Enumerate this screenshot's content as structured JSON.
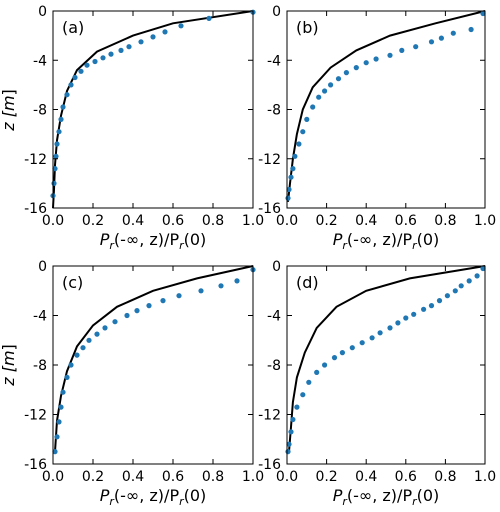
{
  "figure": {
    "panels": [
      "(a)",
      "(b)",
      "(c)",
      "(d)"
    ]
  },
  "axes": {
    "xlabel": {
      "main": "P",
      "sub": "r",
      "rest": "(-∞, z)/P",
      "sub2": "r",
      "rest2": "(0)"
    },
    "ylabel": {
      "main": "z [",
      "unit": "m",
      "close": "]"
    },
    "xticks": [
      "0.0",
      "0.2",
      "0.4",
      "0.6",
      "0.8",
      "1.0"
    ],
    "yticks": [
      "0",
      "-4",
      "-8",
      "-12",
      "-16"
    ]
  },
  "colors": {
    "points": "#1f77b4",
    "line": "#000000"
  },
  "chart_data": [
    {
      "type": "scatter",
      "title": "(a)",
      "xlabel": "Pr(-∞, z)/Pr(0)",
      "ylabel": "z [m]",
      "xlim": [
        0,
        1
      ],
      "ylim": [
        -16,
        0
      ],
      "series": [
        {
          "kind": "line",
          "x": [
            1.0,
            0.6,
            0.4,
            0.22,
            0.12,
            0.07,
            0.04,
            0.02,
            0.01,
            0.005,
            0.0
          ],
          "y": [
            0,
            -1,
            -2,
            -3.3,
            -4.8,
            -6.5,
            -8.5,
            -10.5,
            -12.5,
            -14.5,
            -16
          ]
        },
        {
          "kind": "points",
          "x": [
            1.0,
            0.78,
            0.64,
            0.56,
            0.5,
            0.44,
            0.38,
            0.34,
            0.29,
            0.25,
            0.21,
            0.17,
            0.14,
            0.11,
            0.09,
            0.07,
            0.05,
            0.04,
            0.03,
            0.02,
            0.015,
            0.01,
            0.005,
            0.0
          ],
          "y": [
            -0.1,
            -0.6,
            -1.2,
            -1.7,
            -2.1,
            -2.5,
            -2.9,
            -3.2,
            -3.5,
            -3.8,
            -4.1,
            -4.4,
            -4.9,
            -5.4,
            -6.0,
            -6.8,
            -7.8,
            -8.8,
            -9.8,
            -10.8,
            -11.8,
            -12.8,
            -14.0,
            -15.0
          ]
        }
      ]
    },
    {
      "type": "scatter",
      "title": "(b)",
      "xlabel": "Pr(-∞, z)/Pr(0)",
      "ylabel": "z [m]",
      "xlim": [
        0,
        1
      ],
      "ylim": [
        -16,
        0
      ],
      "series": [
        {
          "kind": "line",
          "x": [
            1.0,
            0.75,
            0.52,
            0.35,
            0.22,
            0.13,
            0.08,
            0.05,
            0.03,
            0.015,
            0.005
          ],
          "y": [
            0,
            -1,
            -2,
            -3.2,
            -4.6,
            -6.2,
            -8.0,
            -10.0,
            -12.0,
            -14.0,
            -15.5
          ]
        },
        {
          "kind": "points",
          "x": [
            0.99,
            0.93,
            0.84,
            0.78,
            0.73,
            0.65,
            0.58,
            0.52,
            0.45,
            0.4,
            0.35,
            0.3,
            0.26,
            0.22,
            0.19,
            0.16,
            0.13,
            0.1,
            0.08,
            0.06,
            0.04,
            0.03,
            0.02,
            0.01,
            0.005
          ],
          "y": [
            -0.2,
            -1.5,
            -1.8,
            -2.2,
            -2.5,
            -2.9,
            -3.2,
            -3.6,
            -3.9,
            -4.2,
            -4.6,
            -5.0,
            -5.5,
            -6.0,
            -6.5,
            -7.0,
            -7.8,
            -8.8,
            -9.8,
            -10.8,
            -11.8,
            -12.8,
            -13.5,
            -14.5,
            -15.2
          ]
        }
      ]
    },
    {
      "type": "scatter",
      "title": "(c)",
      "xlabel": "Pr(-∞, z)/Pr(0)",
      "ylabel": "z [m]",
      "xlim": [
        0,
        1
      ],
      "ylim": [
        -16,
        0
      ],
      "series": [
        {
          "kind": "line",
          "x": [
            1.0,
            0.72,
            0.5,
            0.32,
            0.2,
            0.12,
            0.07,
            0.04,
            0.02,
            0.01
          ],
          "y": [
            0,
            -1,
            -2,
            -3.3,
            -4.8,
            -6.5,
            -8.5,
            -10.5,
            -12.5,
            -15.0
          ]
        },
        {
          "kind": "points",
          "x": [
            1.0,
            0.92,
            0.84,
            0.74,
            0.63,
            0.55,
            0.48,
            0.42,
            0.37,
            0.31,
            0.26,
            0.22,
            0.18,
            0.15,
            0.12,
            0.09,
            0.07,
            0.05,
            0.04,
            0.03,
            0.02,
            0.01
          ],
          "y": [
            -0.3,
            -1.2,
            -1.6,
            -2.0,
            -2.4,
            -2.8,
            -3.2,
            -3.6,
            -4.0,
            -4.5,
            -5.0,
            -5.5,
            -6.0,
            -6.6,
            -7.2,
            -8.0,
            -9.0,
            -10.2,
            -11.4,
            -12.6,
            -13.8,
            -15.0
          ]
        }
      ]
    },
    {
      "type": "scatter",
      "title": "(d)",
      "xlabel": "Pr(-∞, z)/Pr(0)",
      "ylabel": "z [m]",
      "xlim": [
        0,
        1
      ],
      "ylim": [
        -16,
        0
      ],
      "series": [
        {
          "kind": "line",
          "x": [
            1.0,
            0.62,
            0.4,
            0.25,
            0.15,
            0.09,
            0.05,
            0.03,
            0.02,
            0.01
          ],
          "y": [
            0,
            -1,
            -2,
            -3.3,
            -5.0,
            -7.0,
            -9.0,
            -11.0,
            -13.0,
            -15.0
          ]
        },
        {
          "kind": "points",
          "x": [
            0.99,
            0.96,
            0.92,
            0.88,
            0.85,
            0.81,
            0.77,
            0.73,
            0.69,
            0.64,
            0.6,
            0.56,
            0.52,
            0.47,
            0.43,
            0.38,
            0.33,
            0.28,
            0.24,
            0.19,
            0.15,
            0.11,
            0.08,
            0.05,
            0.03,
            0.02,
            0.01,
            0.005
          ],
          "y": [
            -0.2,
            -0.8,
            -1.2,
            -1.6,
            -2.0,
            -2.4,
            -2.8,
            -3.2,
            -3.5,
            -3.9,
            -4.2,
            -4.6,
            -5.0,
            -5.4,
            -5.8,
            -6.2,
            -6.6,
            -7.0,
            -7.4,
            -8.0,
            -8.6,
            -9.4,
            -10.4,
            -11.4,
            -12.4,
            -13.4,
            -14.4,
            -15.0
          ]
        }
      ]
    }
  ]
}
